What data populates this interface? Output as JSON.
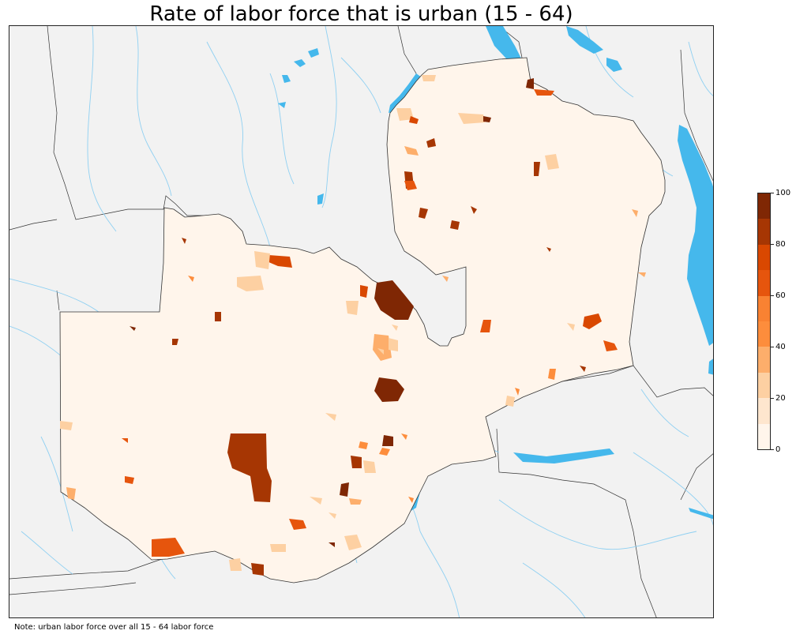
{
  "title": "Rate of labor force that is urban (15 - 64)",
  "note": "Note: urban labor force over all 15 - 64 labor force",
  "colors": {
    "background": "#f2f2f2",
    "water": "#45b8ec",
    "river": "#8fd0f2",
    "border": "#333333"
  },
  "legend": {
    "min": 0,
    "max": 100,
    "ticks": [
      "0",
      "20",
      "40",
      "60",
      "80",
      "100"
    ],
    "classes": [
      {
        "from": 0,
        "to": 10,
        "color": "#fff5eb"
      },
      {
        "from": 10,
        "to": 20,
        "color": "#fee6ce"
      },
      {
        "from": 20,
        "to": 30,
        "color": "#fdd0a2"
      },
      {
        "from": 30,
        "to": 40,
        "color": "#fdae6b"
      },
      {
        "from": 40,
        "to": 50,
        "color": "#fd8d3c"
      },
      {
        "from": 50,
        "to": 60,
        "color": "#f98232"
      },
      {
        "from": 60,
        "to": 70,
        "color": "#e6550d"
      },
      {
        "from": 70,
        "to": 80,
        "color": "#d94801"
      },
      {
        "from": 80,
        "to": 90,
        "color": "#a63603"
      },
      {
        "from": 90,
        "to": 100,
        "color": "#7f2704"
      }
    ]
  }
}
